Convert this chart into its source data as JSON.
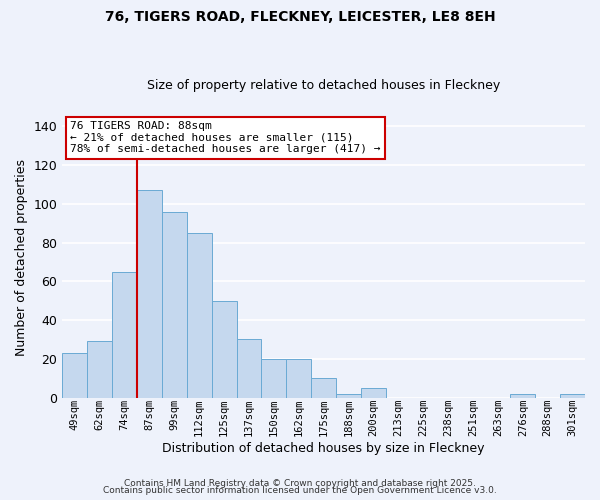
{
  "title1": "76, TIGERS ROAD, FLECKNEY, LEICESTER, LE8 8EH",
  "title2": "Size of property relative to detached houses in Fleckney",
  "xlabel": "Distribution of detached houses by size in Fleckney",
  "ylabel": "Number of detached properties",
  "footer1": "Contains HM Land Registry data © Crown copyright and database right 2025.",
  "footer2": "Contains public sector information licensed under the Open Government Licence v3.0.",
  "annotation_title": "76 TIGERS ROAD: 88sqm",
  "annotation_line1": "← 21% of detached houses are smaller (115)",
  "annotation_line2": "78% of semi-detached houses are larger (417) →",
  "bar_labels": [
    "49sqm",
    "62sqm",
    "74sqm",
    "87sqm",
    "99sqm",
    "112sqm",
    "125sqm",
    "137sqm",
    "150sqm",
    "162sqm",
    "175sqm",
    "188sqm",
    "200sqm",
    "213sqm",
    "225sqm",
    "238sqm",
    "251sqm",
    "263sqm",
    "276sqm",
    "288sqm",
    "301sqm"
  ],
  "bar_values": [
    23,
    29,
    65,
    107,
    96,
    85,
    50,
    30,
    20,
    20,
    10,
    2,
    5,
    0,
    0,
    0,
    0,
    0,
    2,
    0,
    2
  ],
  "bar_color": "#c5d8ee",
  "bar_edge_color": "#6aaad4",
  "background_color": "#eef2fb",
  "grid_color": "#ffffff",
  "vline_color": "#cc0000",
  "vline_index": 3,
  "ylim": [
    0,
    145
  ],
  "yticks": [
    0,
    20,
    40,
    60,
    80,
    100,
    120,
    140
  ],
  "annotation_box_facecolor": "#ffffff",
  "annotation_box_edgecolor": "#cc0000",
  "title1_fontsize": 10,
  "title2_fontsize": 9,
  "xlabel_fontsize": 9,
  "ylabel_fontsize": 9,
  "footer_fontsize": 6.5,
  "annotation_fontsize": 8
}
